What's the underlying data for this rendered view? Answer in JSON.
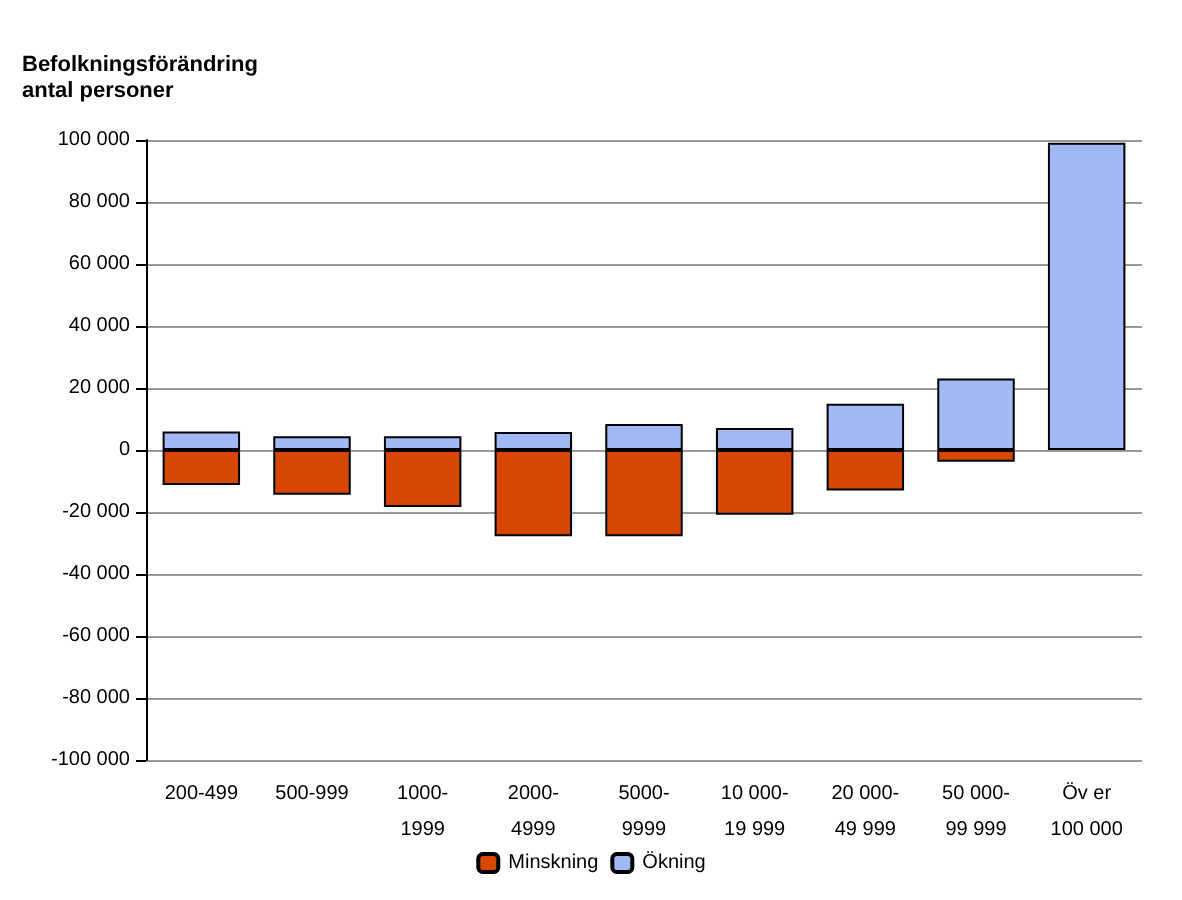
{
  "chart_data": {
    "type": "bar",
    "ylabel": "Befolkningsförändring\nantal personer",
    "categories": [
      "200-499",
      "500-999",
      "1000-\n1999",
      "2000-\n4999",
      "5000-\n9999",
      "10 000-\n19 999",
      "20 000-\n49 999",
      "50 000-\n99 999",
      "Öv er\n100 000"
    ],
    "series": [
      {
        "name": "Minskning",
        "color": "#d64700",
        "values": [
          -11300,
          -14400,
          -18400,
          -27800,
          -27800,
          -20900,
          -13100,
          -3800,
          null
        ]
      },
      {
        "name": "Ökning",
        "color": "#a0b8f4",
        "values": [
          6000,
          4400,
          4400,
          5800,
          8400,
          7100,
          14900,
          23100,
          99100
        ]
      }
    ],
    "stacked": true,
    "ylim": [
      -100000,
      100000
    ],
    "yticks": [
      {
        "value": 100000,
        "label": "100 000"
      },
      {
        "value": 80000,
        "label": "80 000"
      },
      {
        "value": 60000,
        "label": "60 000"
      },
      {
        "value": 40000,
        "label": "40 000"
      },
      {
        "value": 20000,
        "label": "20 000"
      },
      0,
      {
        "value": -20000,
        "label": "-20 000"
      },
      {
        "value": -40000,
        "label": "-40 000"
      },
      {
        "value": -60000,
        "label": "-60 000"
      },
      {
        "value": -80000,
        "label": "-80 000"
      },
      {
        "value": -100000,
        "label": "-100 000"
      }
    ],
    "grid": "y",
    "legend": "bottom"
  }
}
